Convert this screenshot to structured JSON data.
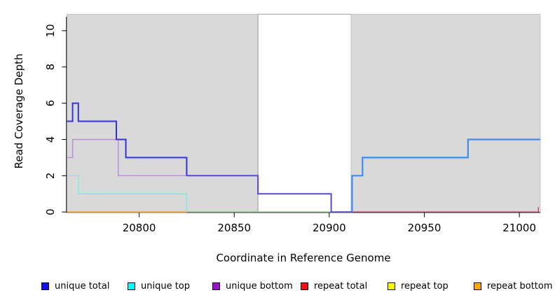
{
  "figure": {
    "xlabel": "Coordinate in Reference Genome",
    "ylabel": "Read Coverage Depth"
  },
  "chart_data": {
    "type": "line",
    "subtype": "step-coverage",
    "title": "",
    "xlabel": "Coordinate in Reference Genome",
    "ylabel": "Read Coverage Depth",
    "xlim": [
      20762,
      21011
    ],
    "ylim": [
      0,
      11
    ],
    "xticks": [
      20800,
      20850,
      20900,
      20950,
      21000
    ],
    "yticks": [
      0,
      2,
      4,
      6,
      8,
      10
    ],
    "grid": false,
    "legend_position": "bottom",
    "background_bands": [
      {
        "name": "covered-region-left",
        "x0": 20762,
        "x1": 20862.5,
        "fill": "#d9d9d9",
        "stroke": "#c5c5c5"
      },
      {
        "name": "uncovered-gap-region",
        "x0": 20862.5,
        "x1": 20911.5,
        "fill": "#ffffff",
        "stroke": "#9c9c9c"
      },
      {
        "name": "covered-region-right",
        "x0": 20911.5,
        "x1": 21011,
        "fill": "#d9d9d9",
        "stroke": "#c5c5c5"
      }
    ],
    "series": [
      {
        "name": "repeat bottom (depth 0)",
        "color": "#ff9d26",
        "width": 2,
        "points": [
          [
            20762,
            0
          ],
          [
            20825,
            0
          ]
        ]
      },
      {
        "name": "unique top + repeat top at 0 (overlap)",
        "color": "#77c377",
        "width": 1.4,
        "points": [
          [
            20825,
            0
          ],
          [
            20901,
            0
          ]
        ]
      },
      {
        "name": "repeat total (depth 0)",
        "color": "#d93a68",
        "width": 1.4,
        "points": [
          [
            20912,
            0
          ],
          [
            21010,
            0
          ],
          [
            21010,
            0.27
          ]
        ]
      },
      {
        "name": "unique top",
        "color": "#7de9e6",
        "width": 1.4,
        "points": [
          [
            20762,
            2
          ],
          [
            20768,
            2
          ],
          [
            20768,
            1
          ],
          [
            20825,
            1
          ],
          [
            20825,
            0
          ]
        ]
      },
      {
        "name": "unique bottom",
        "color": "#c288dd",
        "width": 1.4,
        "points": [
          [
            20762,
            3
          ],
          [
            20765,
            3
          ],
          [
            20765,
            4
          ],
          [
            20789,
            4
          ],
          [
            20789,
            2
          ],
          [
            20825,
            2
          ]
        ]
      },
      {
        "name": "unique total",
        "color": "#3333e6",
        "width": 2,
        "points": [
          [
            20762,
            5
          ],
          [
            20765,
            5
          ],
          [
            20765,
            6
          ],
          [
            20768,
            6
          ],
          [
            20768,
            5
          ],
          [
            20788,
            5
          ],
          [
            20788,
            4
          ],
          [
            20793,
            4
          ],
          [
            20793,
            3
          ],
          [
            20825,
            3
          ],
          [
            20825,
            2
          ]
        ]
      },
      {
        "name": "unique total over unique bottom (overlap)",
        "color": "#5648dd",
        "width": 2,
        "points": [
          [
            20825,
            2
          ],
          [
            20862.5,
            2
          ],
          [
            20862.5,
            1
          ],
          [
            20901,
            1
          ],
          [
            20901,
            0
          ],
          [
            20912,
            0
          ]
        ]
      },
      {
        "name": "unique total over unique top (overlap)",
        "color": "#3e8cf0",
        "width": 2.2,
        "points": [
          [
            20912,
            0
          ],
          [
            20912,
            2
          ],
          [
            20917.5,
            2
          ],
          [
            20917.5,
            3
          ],
          [
            20973,
            3
          ],
          [
            20973,
            4
          ],
          [
            21011,
            4
          ]
        ]
      }
    ],
    "legend": [
      {
        "label": "unique total",
        "color": "#1111ee"
      },
      {
        "label": "unique top",
        "color": "#00ffff"
      },
      {
        "label": "unique bottom",
        "color": "#9912cc"
      },
      {
        "label": "repeat total",
        "color": "#ee1111"
      },
      {
        "label": "repeat top",
        "color": "#ffff00"
      },
      {
        "label": "repeat bottom",
        "color": "#ffa500"
      }
    ]
  }
}
